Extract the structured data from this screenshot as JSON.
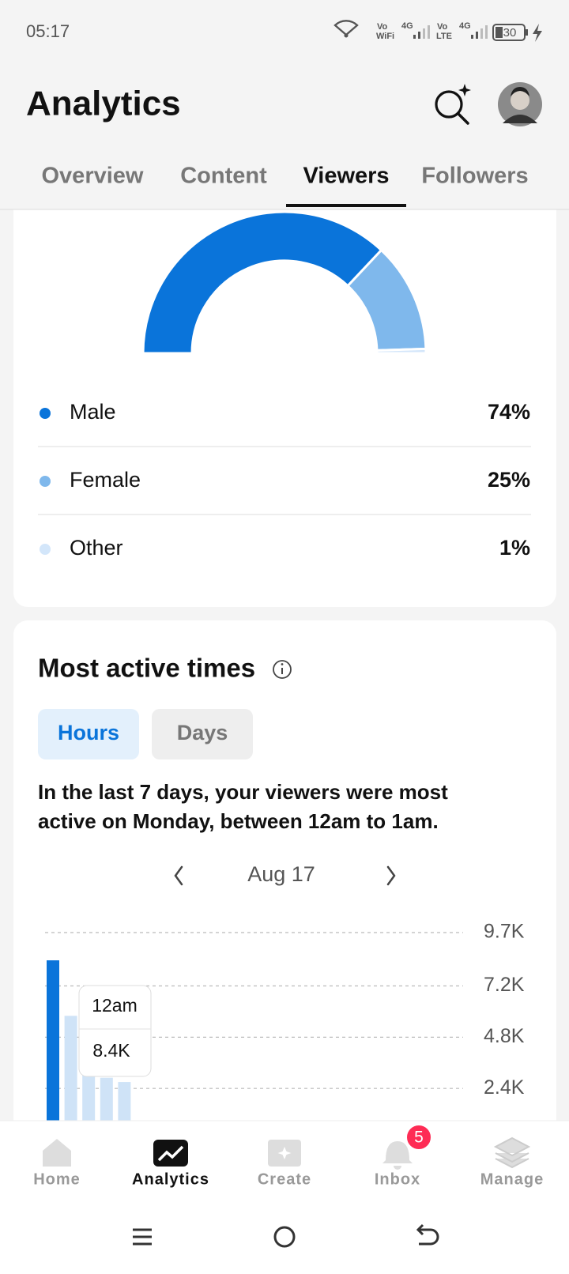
{
  "status_bar": {
    "time": "05:17",
    "wifi_vo": "Vo",
    "wifi_label": "WiFi",
    "sim1_net": "4G",
    "lte_vo": "Vo",
    "lte_label": "LTE",
    "sim2_net": "4G",
    "battery": "30"
  },
  "header": {
    "title": "Analytics"
  },
  "tabs": {
    "items": [
      "Overview",
      "Content",
      "Viewers",
      "Followers"
    ],
    "active": 2
  },
  "active_times": {
    "title": "Most active times",
    "toggle": {
      "items": [
        "Hours",
        "Days"
      ],
      "active": 0
    },
    "description_lines": [
      "In the last 7 days, your viewers were most",
      "active on Monday, between 12am to 1am."
    ],
    "date": "Aug 17"
  },
  "chart_data": [
    {
      "type": "half-donut",
      "categories": [
        "Male",
        "Female",
        "Other"
      ],
      "values": [
        74,
        25,
        1
      ],
      "value_labels": [
        "74%",
        "25%",
        "1%"
      ],
      "colors": [
        "#0a74da",
        "#7fb8ec",
        "#d3e6fa"
      ]
    },
    {
      "type": "bar",
      "values": [
        8400,
        5800,
        3100,
        2900,
        2700
      ],
      "colors": [
        "#0a74da",
        "#cfe3f7",
        "#cfe3f7",
        "#cfe3f7",
        "#cfe3f7"
      ],
      "ylim": [
        0,
        9700
      ],
      "yticks": [
        {
          "value": 2400,
          "label": "2.4K"
        },
        {
          "value": 4800,
          "label": "4.8K"
        },
        {
          "value": 7200,
          "label": "7.2K"
        },
        {
          "value": 9700,
          "label": "9.7K"
        }
      ],
      "grid": true,
      "tooltip": {
        "label": "12am",
        "value_label": "8.4K"
      }
    }
  ],
  "bottom_nav": {
    "items": [
      "Home",
      "Analytics",
      "Create",
      "Inbox",
      "Manage"
    ],
    "active": 1,
    "inbox_badge": 5
  }
}
